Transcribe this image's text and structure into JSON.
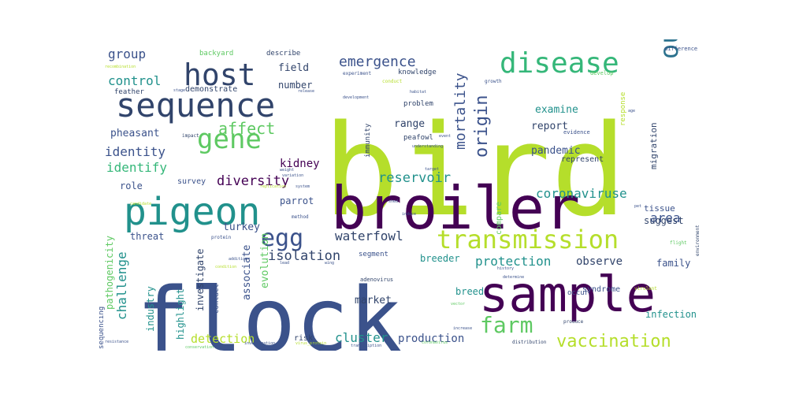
{
  "chart_data": {
    "type": "wordcloud",
    "title": "",
    "words": [
      {
        "text": "bird",
        "weight": 100,
        "color": "#b5de2b"
      },
      {
        "text": "flock",
        "weight": 95,
        "color": "#3b528b"
      },
      {
        "text": "broiler",
        "weight": 78,
        "color": "#440154"
      },
      {
        "text": "sample",
        "weight": 60,
        "color": "#440154"
      },
      {
        "text": "pigeon",
        "weight": 45,
        "color": "#21918c"
      },
      {
        "text": "sequence",
        "weight": 40,
        "color": "#31446b"
      },
      {
        "text": "host",
        "weight": 36,
        "color": "#31446b"
      },
      {
        "text": "disease",
        "weight": 34,
        "color": "#35b779"
      },
      {
        "text": "transmission",
        "weight": 32,
        "color": "#b5de2b"
      },
      {
        "text": "outbreak",
        "weight": 32,
        "color": "#2c728e"
      },
      {
        "text": "gene",
        "weight": 30,
        "color": "#5ec962"
      },
      {
        "text": "egg",
        "weight": 26,
        "color": "#3b528b"
      },
      {
        "text": "farm",
        "weight": 26,
        "color": "#5ec962"
      },
      {
        "text": "vaccination",
        "weight": 22,
        "color": "#b5de2b"
      },
      {
        "text": "affect",
        "weight": 20,
        "color": "#5ec962"
      },
      {
        "text": "emergence",
        "weight": 18,
        "color": "#3b528b"
      },
      {
        "text": "mortality",
        "weight": 16,
        "color": "#3b528b"
      },
      {
        "text": "origin",
        "weight": 18,
        "color": "#3b528b"
      },
      {
        "text": "control",
        "weight": 16,
        "color": "#21918c"
      },
      {
        "text": "group",
        "weight": 16,
        "color": "#3b528b"
      },
      {
        "text": "identity",
        "weight": 16,
        "color": "#3b528b"
      },
      {
        "text": "identify",
        "weight": 16,
        "color": "#35b779"
      },
      {
        "text": "diversity",
        "weight": 16,
        "color": "#440154"
      },
      {
        "text": "reservoir",
        "weight": 16,
        "color": "#21918c"
      },
      {
        "text": "coronaviruse",
        "weight": 16,
        "color": "#21918c"
      },
      {
        "text": "waterfowl",
        "weight": 16,
        "color": "#31446b"
      },
      {
        "text": "isolation",
        "weight": 16,
        "color": "#31446b"
      },
      {
        "text": "protection",
        "weight": 16,
        "color": "#21918c"
      },
      {
        "text": "cluster",
        "weight": 16,
        "color": "#21918c"
      },
      {
        "text": "challenge",
        "weight": 16,
        "color": "#21918c"
      },
      {
        "text": "detection",
        "weight": 16,
        "color": "#b5de2b"
      },
      {
        "text": "production",
        "weight": 14,
        "color": "#3b528b"
      },
      {
        "text": "pathogenicity",
        "weight": 14,
        "color": "#5ec962"
      },
      {
        "text": "pheasant",
        "weight": 12,
        "color": "#3b528b"
      },
      {
        "text": "kidney",
        "weight": 12,
        "color": "#440154"
      },
      {
        "text": "area",
        "weight": 14,
        "color": "#3b528b"
      },
      {
        "text": "report",
        "weight": 12,
        "color": "#31446b"
      },
      {
        "text": "pandemic",
        "weight": 12,
        "color": "#3b528b"
      },
      {
        "text": "examine",
        "weight": 12,
        "color": "#21918c"
      },
      {
        "text": "range",
        "weight": 12,
        "color": "#31446b"
      },
      {
        "text": "field",
        "weight": 12,
        "color": "#31446b"
      },
      {
        "text": "number",
        "weight": 11,
        "color": "#31446b"
      },
      {
        "text": "role",
        "weight": 11,
        "color": "#3b528b"
      },
      {
        "text": "survey",
        "weight": 10,
        "color": "#3b528b"
      },
      {
        "text": "parrot",
        "weight": 11,
        "color": "#3b528b"
      },
      {
        "text": "turkey",
        "weight": 11,
        "color": "#3b528b"
      },
      {
        "text": "threat",
        "weight": 11,
        "color": "#3b528b"
      },
      {
        "text": "investigate",
        "weight": 11,
        "color": "#31446b"
      },
      {
        "text": "associate",
        "weight": 11,
        "color": "#3b528b"
      },
      {
        "text": "evolution",
        "weight": 11,
        "color": "#5ec962"
      },
      {
        "text": "highlight",
        "weight": 11,
        "color": "#21918c"
      },
      {
        "text": "industry",
        "weight": 11,
        "color": "#21918c"
      },
      {
        "text": "market",
        "weight": 11,
        "color": "#31446b"
      },
      {
        "text": "breed",
        "weight": 11,
        "color": "#21918c"
      },
      {
        "text": "breeder",
        "weight": 11,
        "color": "#21918c"
      },
      {
        "text": "observe",
        "weight": 11,
        "color": "#31446b"
      },
      {
        "text": "family",
        "weight": 11,
        "color": "#3b528b"
      },
      {
        "text": "suggest",
        "weight": 10,
        "color": "#31446b"
      },
      {
        "text": "tissue",
        "weight": 10,
        "color": "#3b528b"
      },
      {
        "text": "migration",
        "weight": 10,
        "color": "#31446b"
      },
      {
        "text": "characterize",
        "weight": 10,
        "color": "#31446b"
      },
      {
        "text": "infection",
        "weight": 10,
        "color": "#21918c"
      },
      {
        "text": "compare",
        "weight": 10,
        "color": "#5ec962"
      },
      {
        "text": "response",
        "weight": 9,
        "color": "#b5de2b"
      },
      {
        "text": "represent",
        "weight": 9,
        "color": "#31446b"
      },
      {
        "text": "sequencing",
        "weight": 9,
        "color": "#3b528b"
      },
      {
        "text": "risk",
        "weight": 9,
        "color": "#31446b"
      },
      {
        "text": "segment",
        "weight": 9,
        "color": "#3b528b"
      },
      {
        "text": "contact",
        "weight": 9,
        "color": "#3b528b"
      },
      {
        "text": "syndrome",
        "weight": 9,
        "color": "#3b528b"
      },
      {
        "text": "knowledge",
        "weight": 9,
        "color": "#31446b"
      },
      {
        "text": "peafowl",
        "weight": 9,
        "color": "#31446b"
      },
      {
        "text": "immunity",
        "weight": 9,
        "color": "#31446b"
      },
      {
        "text": "problem",
        "weight": 9,
        "color": "#31446b"
      },
      {
        "text": "demonstrate",
        "weight": 9,
        "color": "#31446b"
      },
      {
        "text": "backyard",
        "weight": 9,
        "color": "#5ec962"
      },
      {
        "text": "describe",
        "weight": 9,
        "color": "#31446b"
      },
      {
        "text": "feather",
        "weight": 8,
        "color": "#31446b"
      },
      {
        "text": "adenovirus",
        "weight": 7,
        "color": "#31446b"
      },
      {
        "text": "occur",
        "weight": 8,
        "color": "#3b528b"
      },
      {
        "text": "evidence",
        "weight": 7,
        "color": "#3b528b"
      },
      {
        "text": "difference",
        "weight": 7,
        "color": "#3b528b"
      },
      {
        "text": "develop",
        "weight": 7,
        "color": "#5ec962"
      },
      {
        "text": "experiment",
        "weight": 6,
        "color": "#3b528b"
      },
      {
        "text": "conduct",
        "weight": 6,
        "color": "#b5de2b"
      },
      {
        "text": "growth",
        "weight": 6,
        "color": "#3b528b"
      },
      {
        "text": "impact",
        "weight": 6,
        "color": "#31446b"
      },
      {
        "text": "flight",
        "weight": 6,
        "color": "#5ec962"
      },
      {
        "text": "environment",
        "weight": 6,
        "color": "#31446b"
      },
      {
        "text": "virulent",
        "weight": 6,
        "color": "#b5de2b"
      },
      {
        "text": "method",
        "weight": 6,
        "color": "#3b528b"
      },
      {
        "text": "protein",
        "weight": 6,
        "color": "#3b528b"
      },
      {
        "text": "distribution",
        "weight": 6,
        "color": "#31446b"
      },
      {
        "text": "produce",
        "weight": 6,
        "color": "#31446b"
      },
      {
        "text": "resistance",
        "weight": 5,
        "color": "#3b528b"
      },
      {
        "text": "investigation",
        "weight": 5,
        "color": "#3b528b"
      },
      {
        "text": "transcription",
        "weight": 5,
        "color": "#3b528b"
      },
      {
        "text": "coronavirus",
        "weight": 5,
        "color": "#5ec962"
      },
      {
        "text": "history",
        "weight": 5,
        "color": "#3b528b"
      },
      {
        "text": "vector",
        "weight": 5,
        "color": "#5ec962"
      },
      {
        "text": "target",
        "weight": 5,
        "color": "#3b528b"
      },
      {
        "text": "habitat",
        "weight": 5,
        "color": "#3b528b"
      },
      {
        "text": "understanding",
        "weight": 5,
        "color": "#3b528b"
      },
      {
        "text": "event",
        "weight": 5,
        "color": "#3b528b"
      },
      {
        "text": "weight",
        "weight": 5,
        "color": "#3b528b"
      },
      {
        "text": "system",
        "weight": 5,
        "color": "#3b528b"
      },
      {
        "text": "replication",
        "weight": 5,
        "color": "#b5de2b"
      },
      {
        "text": "candidate",
        "weight": 5,
        "color": "#b5de2b"
      },
      {
        "text": "recombination",
        "weight": 5,
        "color": "#b5de2b"
      },
      {
        "text": "shed",
        "weight": 5,
        "color": "#3b528b"
      },
      {
        "text": "induce",
        "weight": 5,
        "color": "#3b528b"
      },
      {
        "text": "variation",
        "weight": 5,
        "color": "#3b528b"
      },
      {
        "text": "release",
        "weight": 5,
        "color": "#3b528b"
      },
      {
        "text": "stage",
        "weight": 5,
        "color": "#3b528b"
      },
      {
        "text": "wing",
        "weight": 5,
        "color": "#3b528b"
      },
      {
        "text": "lead",
        "weight": 5,
        "color": "#3b528b"
      },
      {
        "text": "age",
        "weight": 5,
        "color": "#3b528b"
      },
      {
        "text": "pet",
        "weight": 5,
        "color": "#3b528b"
      },
      {
        "text": "increase",
        "weight": 5,
        "color": "#3b528b"
      },
      {
        "text": "addition",
        "weight": 5,
        "color": "#3b528b"
      },
      {
        "text": "condition",
        "weight": 5,
        "color": "#b5de2b"
      },
      {
        "text": "development",
        "weight": 5,
        "color": "#3b528b"
      },
      {
        "text": "conservation",
        "weight": 5,
        "color": "#5ec962"
      },
      {
        "text": "determine",
        "weight": 5,
        "color": "#3b528b"
      },
      {
        "text": "virus_protein",
        "weight": 5,
        "color": "#b5de2b"
      }
    ]
  }
}
